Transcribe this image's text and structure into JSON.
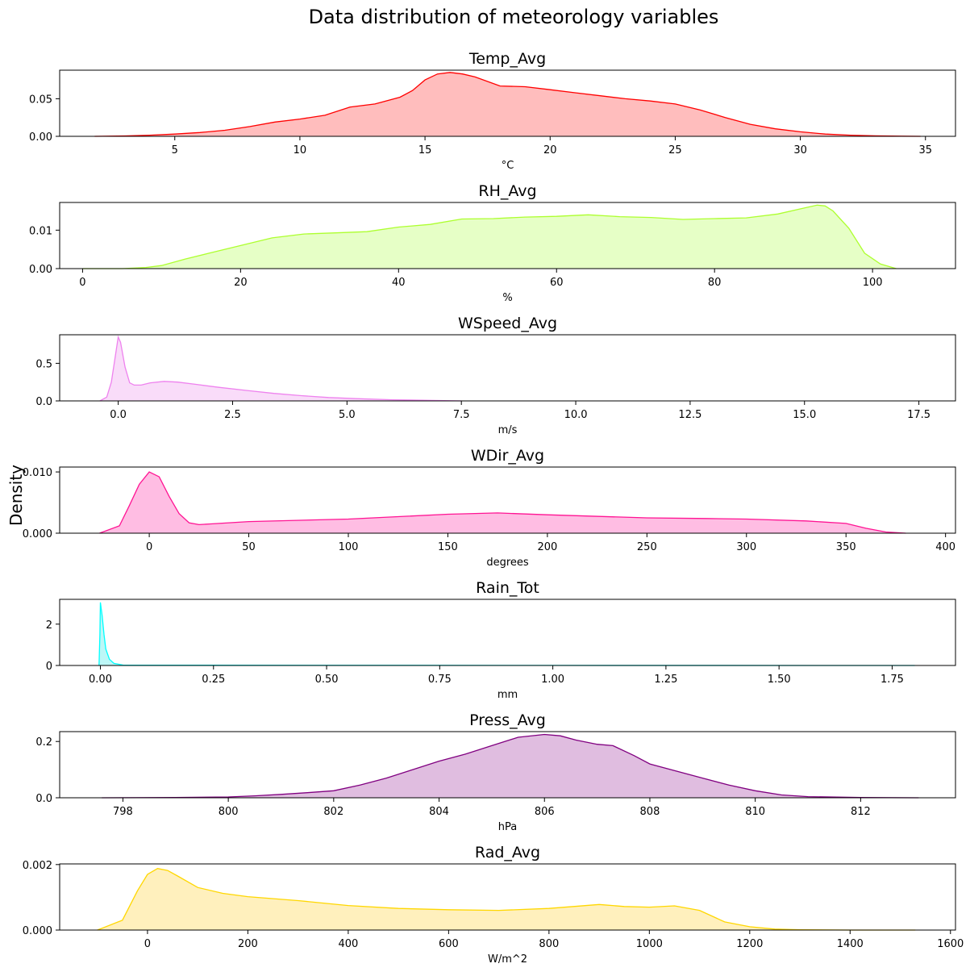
{
  "figure": {
    "title": "Data distribution of meteorology variables",
    "ylabel": "Density"
  },
  "chart_data": [
    {
      "type": "area",
      "title": "Temp_Avg",
      "xlabel": "°C",
      "ylabel": "",
      "color": "#ff0000",
      "fill": "#ffbdbd",
      "xlim": [
        0.4,
        36.2
      ],
      "ylim": [
        0,
        0.088
      ],
      "xticks": [
        5,
        10,
        15,
        20,
        25,
        30,
        35
      ],
      "xtick_labels": [
        "5",
        "10",
        "15",
        "20",
        "25",
        "30",
        "35"
      ],
      "yticks": [
        0,
        0.05
      ],
      "ytick_labels": [
        "0.00",
        "0.05"
      ],
      "x": [
        1.8,
        3,
        4,
        5,
        6,
        7,
        8,
        9,
        10,
        11,
        12,
        13,
        14,
        14.5,
        15,
        15.5,
        16,
        16.5,
        17,
        18,
        19,
        20,
        21,
        22,
        23,
        24,
        25,
        26,
        27,
        28,
        29,
        30,
        31,
        32,
        33,
        34,
        34.8
      ],
      "y": [
        0,
        0.0005,
        0.0015,
        0.003,
        0.005,
        0.008,
        0.013,
        0.019,
        0.023,
        0.028,
        0.039,
        0.043,
        0.052,
        0.061,
        0.075,
        0.083,
        0.085,
        0.083,
        0.079,
        0.067,
        0.066,
        0.062,
        0.058,
        0.054,
        0.05,
        0.047,
        0.043,
        0.035,
        0.025,
        0.016,
        0.01,
        0.006,
        0.003,
        0.0015,
        0.0006,
        0.0002,
        0
      ]
    },
    {
      "type": "area",
      "title": "RH_Avg",
      "xlabel": "%",
      "ylabel": "",
      "color": "#adff2f",
      "fill": "#e6ffc6",
      "xlim": [
        -2.9,
        110.5
      ],
      "ylim": [
        0,
        0.0172
      ],
      "xticks": [
        0,
        20,
        40,
        60,
        80,
        100
      ],
      "xtick_labels": [
        "0",
        "20",
        "40",
        "60",
        "80",
        "100"
      ],
      "yticks": [
        0,
        0.01
      ],
      "ytick_labels": [
        "0.00",
        "0.01"
      ],
      "x": [
        0,
        5,
        8,
        10,
        13,
        16,
        20,
        24,
        28,
        32,
        36,
        40,
        44,
        48,
        52,
        56,
        60,
        64,
        68,
        72,
        76,
        80,
        84,
        88,
        91,
        93,
        94,
        95,
        97,
        99,
        101,
        103
      ],
      "y": [
        0,
        0,
        0.0003,
        0.0008,
        0.0025,
        0.004,
        0.006,
        0.008,
        0.009,
        0.0093,
        0.0096,
        0.0108,
        0.0115,
        0.0129,
        0.013,
        0.0134,
        0.0136,
        0.014,
        0.0135,
        0.0133,
        0.0128,
        0.013,
        0.0132,
        0.0142,
        0.0156,
        0.0165,
        0.0163,
        0.015,
        0.0105,
        0.004,
        0.0012,
        0
      ]
    },
    {
      "type": "area",
      "title": "WSpeed_Avg",
      "xlabel": "m/s",
      "ylabel": "",
      "color": "#ee82ee",
      "fill": "#f9dcf9",
      "xlim": [
        -1.28,
        18.3
      ],
      "ylim": [
        0,
        0.88
      ],
      "xticks": [
        0,
        2.5,
        5,
        7.5,
        10,
        12.5,
        15,
        17.5
      ],
      "xtick_labels": [
        "0.0",
        "2.5",
        "5.0",
        "7.5",
        "10.0",
        "12.5",
        "15.0",
        "17.5"
      ],
      "yticks": [
        0,
        0.5
      ],
      "ytick_labels": [
        "0.0",
        "0.5"
      ],
      "x": [
        -0.4,
        -0.25,
        -0.15,
        -0.05,
        0,
        0.05,
        0.15,
        0.25,
        0.35,
        0.5,
        0.7,
        1,
        1.3,
        1.7,
        2.2,
        2.8,
        3.4,
        4,
        4.6,
        5.2,
        6,
        7,
        7.5
      ],
      "y": [
        0,
        0.05,
        0.25,
        0.65,
        0.85,
        0.78,
        0.45,
        0.24,
        0.21,
        0.21,
        0.24,
        0.26,
        0.25,
        0.22,
        0.18,
        0.14,
        0.1,
        0.07,
        0.045,
        0.03,
        0.015,
        0.005,
        0
      ]
    },
    {
      "type": "area",
      "title": "WDir_Avg",
      "xlabel": "degrees",
      "ylabel": "",
      "color": "#ff1493",
      "fill": "#ffbde3",
      "xlim": [
        -45,
        405
      ],
      "ylim": [
        0,
        0.0108
      ],
      "xticks": [
        0,
        50,
        100,
        150,
        200,
        250,
        300,
        350,
        400
      ],
      "xtick_labels": [
        "0",
        "50",
        "100",
        "150",
        "200",
        "250",
        "300",
        "350",
        "400"
      ],
      "yticks": [
        0,
        0.01
      ],
      "ytick_labels": [
        "0.000",
        "0.010"
      ],
      "x": [
        -25,
        -15,
        -10,
        -5,
        0,
        5,
        10,
        15,
        20,
        25,
        30,
        50,
        100,
        150,
        175,
        200,
        250,
        280,
        300,
        330,
        350,
        360,
        370,
        380
      ],
      "y": [
        0,
        0.0012,
        0.0045,
        0.008,
        0.01,
        0.0092,
        0.006,
        0.0032,
        0.0017,
        0.0014,
        0.0015,
        0.0019,
        0.0023,
        0.0031,
        0.0033,
        0.003,
        0.0025,
        0.0024,
        0.0023,
        0.002,
        0.0016,
        0.0008,
        0.0002,
        0
      ]
    },
    {
      "type": "area",
      "title": "Rain_Tot",
      "xlabel": "mm",
      "ylabel": "",
      "color": "#00ffff",
      "fill": "#bdf7f7",
      "xlim": [
        -0.09,
        1.89
      ],
      "ylim": [
        0,
        3.2
      ],
      "xticks": [
        0,
        0.25,
        0.5,
        0.75,
        1,
        1.25,
        1.5,
        1.75
      ],
      "xtick_labels": [
        "0.00",
        "0.25",
        "0.50",
        "0.75",
        "1.00",
        "1.25",
        "1.50",
        "1.75"
      ],
      "yticks": [
        0,
        2
      ],
      "ytick_labels": [
        "0",
        "2"
      ],
      "x": [
        -0.003,
        -0.001,
        0,
        0.004,
        0.008,
        0.012,
        0.02,
        0.03,
        0.05,
        0.2,
        1,
        1.8
      ],
      "y": [
        0,
        1.5,
        3.05,
        2.4,
        1.5,
        0.8,
        0.3,
        0.1,
        0.02,
        0.01,
        0.003,
        0
      ]
    },
    {
      "type": "area",
      "title": "Press_Avg",
      "xlabel": "hPa",
      "ylabel": "",
      "color": "#800080",
      "fill": "#e0bde0",
      "xlim": [
        796.8,
        813.8
      ],
      "ylim": [
        0,
        0.235
      ],
      "xticks": [
        798,
        800,
        802,
        804,
        806,
        808,
        810,
        812
      ],
      "xtick_labels": [
        "798",
        "800",
        "802",
        "804",
        "806",
        "808",
        "810",
        "812"
      ],
      "yticks": [
        0,
        0.2
      ],
      "ytick_labels": [
        "0.0",
        "0.2"
      ],
      "x": [
        797.6,
        799,
        800,
        800.5,
        801,
        801.5,
        802,
        802.5,
        803,
        803.5,
        804,
        804.5,
        805,
        805.5,
        806,
        806.3,
        806.6,
        807,
        807.3,
        807.7,
        808,
        808.5,
        809,
        809.5,
        810,
        810.5,
        811,
        812,
        813.1
      ],
      "y": [
        0,
        0.001,
        0.003,
        0.007,
        0.012,
        0.018,
        0.025,
        0.045,
        0.07,
        0.1,
        0.13,
        0.155,
        0.185,
        0.215,
        0.225,
        0.22,
        0.205,
        0.19,
        0.185,
        0.15,
        0.12,
        0.095,
        0.07,
        0.045,
        0.025,
        0.01,
        0.004,
        0.001,
        0
      ]
    },
    {
      "type": "area",
      "title": "Rad_Avg",
      "xlabel": "W/m^2",
      "ylabel": "",
      "color": "#ffd700",
      "fill": "#fff0bd",
      "xlim": [
        -175,
        1610
      ],
      "ylim": [
        0,
        0.00202
      ],
      "xticks": [
        0,
        200,
        400,
        600,
        800,
        1000,
        1200,
        1400,
        1600
      ],
      "xtick_labels": [
        "0",
        "200",
        "400",
        "600",
        "800",
        "1000",
        "1200",
        "1400",
        "1600"
      ],
      "yticks": [
        0,
        0.002
      ],
      "ytick_labels": [
        "0.000",
        "0.002"
      ],
      "x": [
        -100,
        -50,
        -20,
        0,
        20,
        40,
        60,
        100,
        150,
        200,
        300,
        400,
        500,
        600,
        700,
        800,
        900,
        950,
        1000,
        1050,
        1100,
        1150,
        1200,
        1250,
        1300,
        1400,
        1530
      ],
      "y": [
        0,
        0.0003,
        0.0012,
        0.0017,
        0.00188,
        0.00182,
        0.00165,
        0.0013,
        0.00112,
        0.00102,
        0.0009,
        0.00075,
        0.00066,
        0.00062,
        0.0006,
        0.00066,
        0.00078,
        0.00072,
        0.0007,
        0.00074,
        0.0006,
        0.00025,
        0.0001,
        3e-05,
        1e-05,
        0,
        0
      ]
    }
  ]
}
